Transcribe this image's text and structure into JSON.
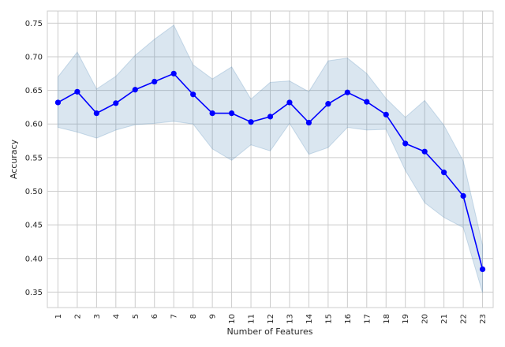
{
  "chart_data": {
    "type": "line",
    "title": "",
    "xlabel": "Number of Features",
    "ylabel": "Accuracy",
    "grid": true,
    "x": [
      1,
      2,
      3,
      4,
      5,
      6,
      7,
      8,
      9,
      10,
      11,
      12,
      13,
      14,
      15,
      16,
      17,
      18,
      19,
      20,
      21,
      22,
      23
    ],
    "x_tick_labels": [
      "1",
      "2",
      "3",
      "4",
      "5",
      "6",
      "7",
      "8",
      "9",
      "10",
      "11",
      "12",
      "13",
      "14",
      "15",
      "16",
      "17",
      "18",
      "19",
      "20",
      "21",
      "22",
      "23"
    ],
    "y_ticks": [
      0.35,
      0.4,
      0.45,
      0.5,
      0.55,
      0.6,
      0.65,
      0.7,
      0.75
    ],
    "y_tick_labels": [
      "0.35",
      "0.40",
      "0.45",
      "0.50",
      "0.55",
      "0.60",
      "0.65",
      "0.70",
      "0.75"
    ],
    "xlim": [
      0.45,
      23.55
    ],
    "ylim": [
      0.327,
      0.768
    ],
    "series": [
      {
        "values": [
          0.632,
          0.648,
          0.616,
          0.631,
          0.651,
          0.663,
          0.675,
          0.644,
          0.616,
          0.616,
          0.603,
          0.611,
          0.632,
          0.602,
          0.63,
          0.647,
          0.633,
          0.614,
          0.571,
          0.559,
          0.528,
          0.493,
          0.384
        ],
        "upper": [
          0.67,
          0.707,
          0.652,
          0.671,
          0.702,
          0.726,
          0.747,
          0.688,
          0.667,
          0.685,
          0.637,
          0.662,
          0.664,
          0.648,
          0.694,
          0.698,
          0.675,
          0.638,
          0.61,
          0.635,
          0.598,
          0.545,
          0.42
        ],
        "lower": [
          0.595,
          0.588,
          0.579,
          0.591,
          0.599,
          0.601,
          0.604,
          0.6,
          0.563,
          0.546,
          0.569,
          0.56,
          0.601,
          0.555,
          0.565,
          0.595,
          0.591,
          0.592,
          0.531,
          0.483,
          0.461,
          0.446,
          0.349
        ],
        "line_color": "#0000ff",
        "band_color": "#4682b4"
      }
    ]
  }
}
